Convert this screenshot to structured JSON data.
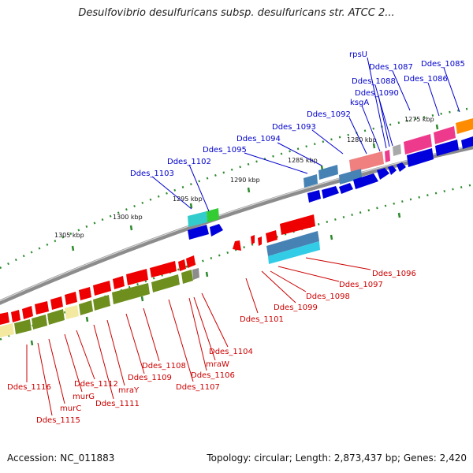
{
  "title": "Desulfovibrio desulfuricans subsp. desulfuricans str. ATCC 2...",
  "footer": {
    "accession": "Accession: NC_011883",
    "topology": "Topology: circular; Length: 2,873,437 bp; Genes: 2,420"
  },
  "colors": {
    "label_top": "#0000cc",
    "label_bottom": "#cc0000",
    "backbone": "#8c8c8c",
    "tick": "#2e8b2e",
    "gene_red": "#ee0000",
    "gene_blue": "#0000dd",
    "gene_olive": "#6e8f1e",
    "gene_pale": "#f3e9a0",
    "gene_pink": "#ee3a8c",
    "gene_salmon": "#f08080",
    "gene_steel": "#4682b4",
    "gene_cyan": "#33cce6",
    "gene_green": "#33cc33",
    "gene_orange": "#ff8c00"
  },
  "kbp_labels": [
    "1275 kbp",
    "1280 kbp",
    "1285 kbp",
    "1290 kbp",
    "1295 kbp",
    "1300 kbp",
    "1305 kbp"
  ],
  "top_labels": [
    "rpsU",
    "Ddes_1087",
    "Ddes_1085",
    "Ddes_1088",
    "Ddes_1086",
    "Ddes_1090",
    "ksgA",
    "Ddes_1092",
    "Ddes_1093",
    "Ddes_1094",
    "Ddes_1095",
    "Ddes_1102",
    "Ddes_1103"
  ],
  "bottom_labels": [
    "Ddes_1096",
    "Ddes_1097",
    "Ddes_1098",
    "Ddes_1099",
    "Ddes_1101",
    "Ddes_1104",
    "mraW",
    "Ddes_1106",
    "Ddes_1107",
    "Ddes_1108",
    "Ddes_1109",
    "mraY",
    "Ddes_1111",
    "Ddes_1112",
    "murG",
    "murC",
    "Ddes_1115",
    "Ddes_1116"
  ]
}
